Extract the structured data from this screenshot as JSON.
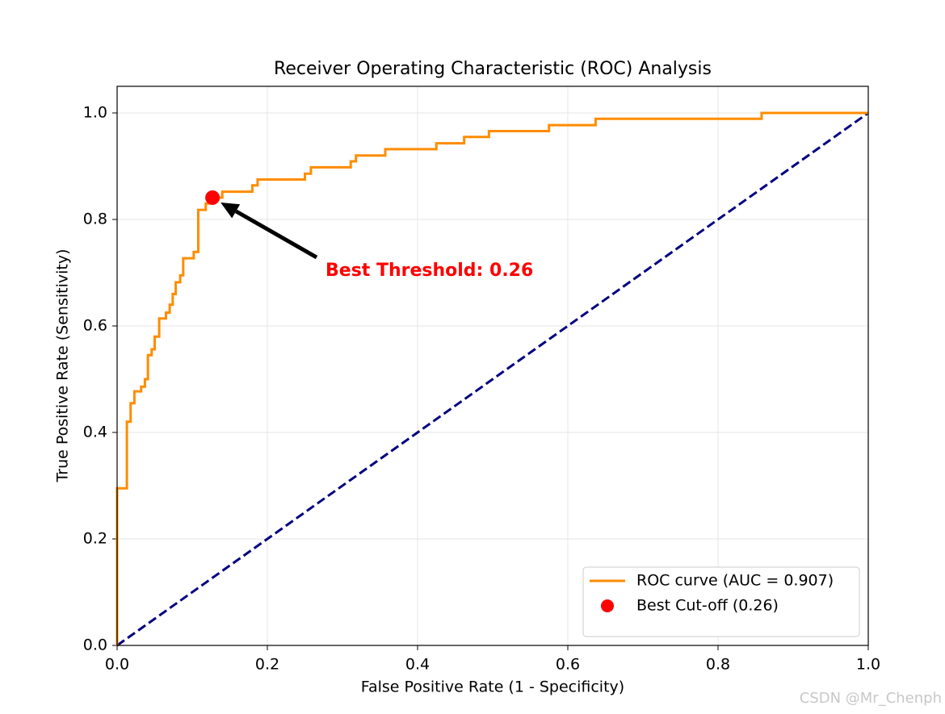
{
  "chart_data": {
    "type": "line",
    "title": "Receiver Operating Characteristic (ROC) Analysis",
    "xlabel": "False Positive Rate (1 - Specificity)",
    "ylabel": "True Positive Rate (Sensitivity)",
    "xlim": [
      0,
      1
    ],
    "ylim": [
      0,
      1.05
    ],
    "xticks": [
      {
        "value": 0,
        "label": "0.0"
      },
      0.2,
      0.4,
      0.6,
      0.8,
      {
        "value": 1,
        "label": "1.0"
      }
    ],
    "yticks": [
      {
        "value": 0,
        "label": "0.0"
      },
      0.2,
      0.4,
      0.6,
      0.8,
      {
        "value": 1,
        "label": "1.0"
      }
    ],
    "grid": true,
    "legend": "lower right",
    "series": [
      {
        "name": "ROC curve (AUC = 0.907)",
        "type": "line",
        "color": "#ff8c00",
        "x": [
          0,
          0,
          0.013,
          0.013,
          0.018,
          0.018,
          0.023,
          0.023,
          0.032,
          0.032,
          0.037,
          0.037,
          0.041,
          0.041,
          0.046,
          0.046,
          0.05,
          0.05,
          0.056,
          0.056,
          0.065,
          0.065,
          0.07,
          0.07,
          0.074,
          0.074,
          0.078,
          0.078,
          0.084,
          0.084,
          0.088,
          0.088,
          0.102,
          0.102,
          0.108,
          0.108,
          0.118,
          0.118,
          0.127,
          0.127,
          0.14,
          0.14,
          0.18,
          0.18,
          0.187,
          0.187,
          0.25,
          0.25,
          0.258,
          0.258,
          0.311,
          0.311,
          0.318,
          0.318,
          0.357,
          0.357,
          0.425,
          0.425,
          0.462,
          0.462,
          0.495,
          0.495,
          0.575,
          0.575,
          0.637,
          0.637,
          0.858,
          0.858,
          1
        ],
        "y": [
          0,
          0.295,
          0.295,
          0.42,
          0.42,
          0.455,
          0.455,
          0.477,
          0.477,
          0.486,
          0.486,
          0.5,
          0.5,
          0.545,
          0.545,
          0.556,
          0.556,
          0.58,
          0.58,
          0.614,
          0.614,
          0.625,
          0.625,
          0.64,
          0.64,
          0.66,
          0.66,
          0.682,
          0.682,
          0.695,
          0.695,
          0.727,
          0.727,
          0.739,
          0.739,
          0.818,
          0.818,
          0.83,
          0.83,
          0.841,
          0.841,
          0.852,
          0.852,
          0.864,
          0.864,
          0.875,
          0.875,
          0.886,
          0.886,
          0.898,
          0.898,
          0.909,
          0.909,
          0.92,
          0.92,
          0.932,
          0.932,
          0.943,
          0.943,
          0.955,
          0.955,
          0.966,
          0.966,
          0.977,
          0.977,
          0.989,
          0.989,
          1,
          1
        ]
      },
      {
        "name": "Best Cut-off (0.26)",
        "type": "scatter",
        "color": "#ff0000",
        "x": [
          0.127
        ],
        "y": [
          0.841
        ]
      },
      {
        "type": "line",
        "color": "#000080",
        "linestyle": "dashed",
        "x": [
          0,
          1
        ],
        "y": [
          0,
          1
        ]
      }
    ],
    "annotation": {
      "text": "Best Threshold: 0.26",
      "color": "#ff0000"
    },
    "watermark": "CSDN @Mr_Chenph"
  }
}
